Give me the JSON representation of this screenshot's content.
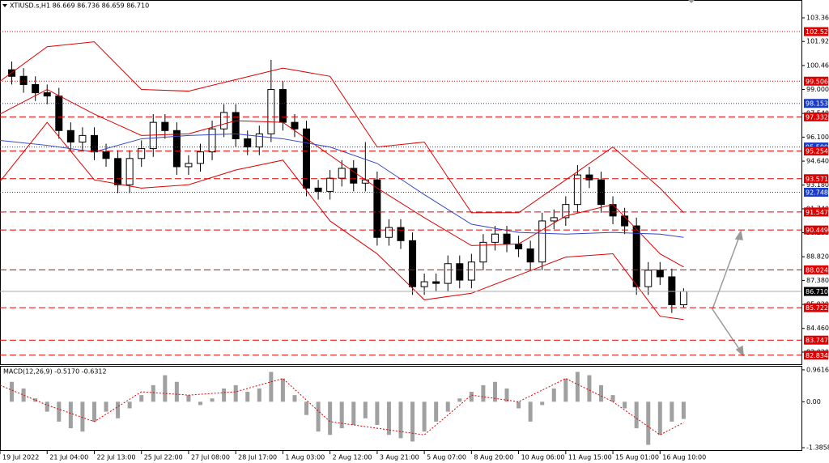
{
  "chart_data": [
    {
      "type": "candlestick",
      "title": "XTIUSD.s,H1  86.669 86.736 86.659 86.710",
      "xlim": [
        0,
        68
      ],
      "ylim": [
        82.28,
        104.05
      ],
      "yticks": [
        {
          "value": 103.36,
          "label": "103.360"
        },
        {
          "value": 101.92,
          "label": "101.920"
        },
        {
          "value": 100.46,
          "label": "100.460"
        },
        {
          "value": 99,
          "label": "99.000"
        },
        {
          "value": 97.54,
          "label": "97.540"
        },
        {
          "value": 96.1,
          "label": "96.100"
        },
        {
          "value": 94.64,
          "label": "94.640"
        },
        {
          "value": 93.18,
          "label": "93.180"
        },
        {
          "value": 91.74,
          "label": "91.740"
        },
        {
          "value": 90.28,
          "label": "90.280"
        },
        {
          "value": 88.82,
          "label": "88.820"
        },
        {
          "value": 87.38,
          "label": "87.380"
        },
        {
          "value": 85.92,
          "label": "85.920"
        },
        {
          "value": 84.46,
          "label": "84.460"
        },
        {
          "value": 83.02,
          "label": "83.020"
        }
      ],
      "x": [
        1,
        2,
        3,
        4,
        5,
        6,
        7,
        8,
        9,
        10,
        11,
        12,
        13,
        14,
        15,
        16,
        17,
        18,
        19,
        20,
        21,
        22,
        23,
        24,
        25,
        26,
        27,
        28,
        29,
        30,
        31,
        32,
        33,
        34,
        35,
        36,
        37,
        38,
        39,
        40,
        41,
        42,
        43,
        44,
        45,
        46,
        47,
        48,
        49,
        50,
        51,
        52,
        53,
        54,
        55,
        56,
        57,
        58
      ],
      "open": [
        100.2,
        99.8,
        99.3,
        98.8,
        98.6,
        96.5,
        95.8,
        96.2,
        95.2,
        94.8,
        93.2,
        94.8,
        95.4,
        97.0,
        96.5,
        94.3,
        94.5,
        95.2,
        96.6,
        97.6,
        96.0,
        95.5,
        96.3,
        99.0,
        97.0,
        96.6,
        93.0,
        92.8,
        93.6,
        94.2,
        93.3,
        93.5,
        90.0,
        90.6,
        89.8,
        87.0,
        87.3,
        87.2,
        88.4,
        87.4,
        88.5,
        89.7,
        90.2,
        89.6,
        89.3,
        88.5,
        91.0,
        91.2,
        92.0,
        93.8,
        93.5,
        92.0,
        91.3,
        90.7,
        87.0,
        88.0,
        87.6,
        85.9
      ],
      "high": [
        100.7,
        100.3,
        99.8,
        99.3,
        99.1,
        97.0,
        96.7,
        96.7,
        95.7,
        95.3,
        95.3,
        95.9,
        97.5,
        97.5,
        97.0,
        95.0,
        95.7,
        97.1,
        98.1,
        98.1,
        96.5,
        96.8,
        100.8,
        99.5,
        97.5,
        97.1,
        93.5,
        94.1,
        94.7,
        94.7,
        95.8,
        94.0,
        91.1,
        91.1,
        90.3,
        87.8,
        87.8,
        88.9,
        88.9,
        89.0,
        90.2,
        90.7,
        90.7,
        90.1,
        89.8,
        91.5,
        91.7,
        92.5,
        94.4,
        94.3,
        94.0,
        92.5,
        91.8,
        91.2,
        88.5,
        88.5,
        88.1,
        86.9
      ],
      "low": [
        99.3,
        98.8,
        98.3,
        98.1,
        96.0,
        95.3,
        95.3,
        94.7,
        94.3,
        92.7,
        92.7,
        94.3,
        94.9,
        96.0,
        93.8,
        93.8,
        94.0,
        94.7,
        96.1,
        95.5,
        95.0,
        95.0,
        95.8,
        96.5,
        96.1,
        92.5,
        92.3,
        92.3,
        93.1,
        92.8,
        92.8,
        89.5,
        89.5,
        89.3,
        86.5,
        86.5,
        86.7,
        86.7,
        86.9,
        86.9,
        88.0,
        89.2,
        89.1,
        88.8,
        88.0,
        88.0,
        90.5,
        90.7,
        91.5,
        93.0,
        91.5,
        90.8,
        90.2,
        86.5,
        86.5,
        87.1,
        85.4,
        85.7
      ],
      "close": [
        99.8,
        99.3,
        98.8,
        98.6,
        96.5,
        95.8,
        96.2,
        95.2,
        94.8,
        93.2,
        94.8,
        95.4,
        97.0,
        96.5,
        94.3,
        94.5,
        95.2,
        96.6,
        97.6,
        96.0,
        95.5,
        96.3,
        99.0,
        97.0,
        96.6,
        93.0,
        92.8,
        93.6,
        94.2,
        93.3,
        93.5,
        90.0,
        90.6,
        89.8,
        87.0,
        87.3,
        87.2,
        88.4,
        87.4,
        88.5,
        89.7,
        90.2,
        89.6,
        89.3,
        88.5,
        91.0,
        91.2,
        92.0,
        93.8,
        93.5,
        92.0,
        91.3,
        90.7,
        87.0,
        88.0,
        87.6,
        85.9,
        86.71
      ],
      "lines": [
        {
          "color": "#e00000",
          "x": [
            0,
            4,
            8,
            12,
            16,
            20,
            24,
            28,
            32,
            36,
            40,
            44,
            48,
            52,
            56,
            58
          ],
          "values": [
            99.5,
            101.6,
            101.9,
            99.0,
            98.9,
            99.6,
            100.3,
            99.8,
            95.5,
            95.8,
            91.5,
            91.5,
            93.5,
            95.5,
            93.0,
            91.5
          ]
        },
        {
          "color": "#e00000",
          "x": [
            0,
            4,
            8,
            12,
            16,
            20,
            24,
            28,
            32,
            36,
            40,
            44,
            48,
            52,
            56,
            58
          ],
          "values": [
            97.5,
            99.0,
            97.5,
            96.2,
            96.3,
            97.1,
            97.0,
            95.0,
            93.0,
            91.2,
            89.5,
            89.6,
            91.3,
            92.0,
            89.0,
            88.2
          ]
        },
        {
          "color": "#e00000",
          "x": [
            0,
            4,
            8,
            12,
            16,
            20,
            24,
            28,
            32,
            36,
            40,
            44,
            48,
            52,
            56,
            58
          ],
          "values": [
            93.4,
            97.0,
            93.5,
            93.0,
            93.2,
            94.1,
            94.7,
            91.0,
            89.0,
            86.2,
            86.6,
            87.7,
            88.8,
            89.0,
            85.2,
            85.0
          ]
        },
        {
          "color": "#3344cc",
          "x": [
            0,
            4,
            8,
            12,
            16,
            20,
            24,
            28,
            32,
            36,
            40,
            44,
            48,
            52,
            56,
            58
          ],
          "values": [
            95.9,
            95.6,
            95.2,
            96.0,
            96.2,
            96.3,
            96.0,
            95.5,
            94.5,
            92.6,
            90.8,
            90.3,
            90.2,
            90.3,
            90.2,
            90.0
          ]
        }
      ],
      "levels": [
        {
          "value": 102.521,
          "color": "#e00000",
          "style": "dotted"
        },
        {
          "value": 99.506,
          "color": "#e00000",
          "style": "dotted"
        },
        {
          "value": 98.153,
          "color": "#1a3ccc",
          "style": "dotted"
        },
        {
          "value": 97.332,
          "color": "#e00000",
          "style": "dashed"
        },
        {
          "value": 95.5,
          "label": "95.500",
          "color": "#1a3ccc",
          "style": "dotted"
        },
        {
          "value": 95.254,
          "color": "#e00000",
          "style": "dashed"
        },
        {
          "value": 93.571,
          "color": "#e00000",
          "style": "dashed"
        },
        {
          "value": 92.748,
          "color": "#1a3ccc",
          "style": "dotted"
        },
        {
          "value": 91.547,
          "color": "#e00000",
          "style": "dashed"
        },
        {
          "value": 90.449,
          "color": "#e00000",
          "style": "dashed"
        },
        {
          "value": 88.024,
          "color": "#e00000",
          "style": "dashed"
        },
        {
          "value": 86.71,
          "label": "86.710",
          "color": "#000000",
          "style": "solid"
        },
        {
          "value": 85.722,
          "color": "#e00000",
          "style": "dashed"
        },
        {
          "value": 83.747,
          "color": "#e00000",
          "style": "dashed"
        },
        {
          "value": 82.834,
          "color": "#e00000",
          "style": "dashed"
        }
      ]
    },
    {
      "type": "macd",
      "title": "MACD(12,26,9) -0.5170 -0.6312",
      "xlim": [
        0,
        68
      ],
      "ylim": [
        -1.482,
        1.082
      ],
      "yticks": [
        0.9616,
        {
          "value": 0,
          "label": "0.00"
        },
        -1.3858
      ],
      "xticks": [
        {
          "value": 0,
          "label": "19 Jul 2022"
        },
        {
          "value": 4,
          "label": "21 Jul 04:00"
        },
        {
          "value": 8,
          "label": "22 Jul 13:00"
        },
        {
          "value": 12,
          "label": "25 Jul 22:00"
        },
        {
          "value": 16,
          "label": "27 Jul 08:00"
        },
        {
          "value": 20,
          "label": "28 Jul 17:00"
        },
        {
          "value": 24,
          "label": "1 Aug 03:00"
        },
        {
          "value": 28,
          "label": "2 Aug 12:00"
        },
        {
          "value": 32,
          "label": "3 Aug 21:00"
        },
        {
          "value": 36,
          "label": "5 Aug 07:00"
        },
        {
          "value": 40,
          "label": "8 Aug 20:00"
        },
        {
          "value": 44,
          "label": "10 Aug 06:00"
        },
        {
          "value": 48,
          "label": "11 Aug 15:00"
        },
        {
          "value": 52,
          "label": "15 Aug 01:00"
        },
        {
          "value": 56,
          "label": "16 Aug 10:00"
        }
      ],
      "x": [
        1,
        2,
        3,
        4,
        5,
        6,
        7,
        8,
        9,
        10,
        11,
        12,
        13,
        14,
        15,
        16,
        17,
        18,
        19,
        20,
        21,
        22,
        23,
        24,
        25,
        26,
        27,
        28,
        29,
        30,
        31,
        32,
        33,
        34,
        35,
        36,
        37,
        38,
        39,
        40,
        41,
        42,
        43,
        44,
        45,
        46,
        47,
        48,
        49,
        50,
        51,
        52,
        53,
        54,
        55,
        56,
        57,
        58
      ],
      "values": [
        0.6,
        0.4,
        0.1,
        -0.3,
        -0.6,
        -0.8,
        -0.9,
        -0.6,
        -0.3,
        -0.5,
        -0.2,
        0.2,
        0.5,
        0.8,
        0.6,
        0.2,
        -0.1,
        0.1,
        0.4,
        0.5,
        0.3,
        0.4,
        0.9,
        0.7,
        0.2,
        -0.4,
        -0.9,
        -1.0,
        -0.8,
        -0.7,
        -0.5,
        -0.7,
        -1.0,
        -1.1,
        -1.2,
        -0.9,
        -0.6,
        -0.3,
        0.1,
        0.3,
        0.5,
        0.6,
        0.4,
        -0.2,
        -0.6,
        -0.1,
        0.4,
        0.7,
        0.9,
        0.8,
        0.5,
        0.2,
        -0.2,
        -0.8,
        -1.3,
        -1.0,
        -0.6,
        -0.52
      ],
      "color": "#a0a0a0",
      "signal": {
        "color": "#e00000",
        "x": [
          0,
          4,
          8,
          12,
          16,
          20,
          24,
          28,
          32,
          36,
          40,
          44,
          48,
          52,
          56,
          58
        ],
        "values": [
          0.5,
          -0.1,
          -0.6,
          0.3,
          0.2,
          0.3,
          0.7,
          -0.6,
          -0.8,
          -1.0,
          0.2,
          0.0,
          0.7,
          0.0,
          -1.0,
          -0.63
        ]
      }
    }
  ]
}
